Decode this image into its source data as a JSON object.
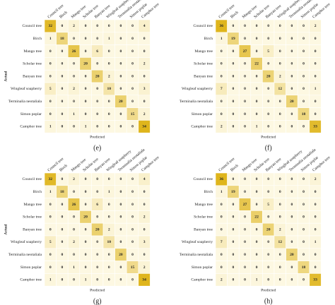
{
  "chart_data": [
    {
      "type": "heatmap",
      "label": "(e)",
      "x_label": "Predicted",
      "y_label": "Actual",
      "categories": [
        "Council tree",
        "Birch",
        "Mango tree",
        "Scholar tree",
        "Banyan tree",
        "Wingleaf soapberry",
        "Terminalia neotaliala",
        "Simon poplar",
        "Camphor tree"
      ],
      "colors": [
        "#fdf8e2",
        "#dfb51c"
      ],
      "values": [
        [
          32,
          0,
          2,
          0,
          0,
          0,
          0,
          0,
          4
        ],
        [
          1,
          18,
          0,
          0,
          0,
          1,
          0,
          0,
          0
        ],
        [
          0,
          0,
          26,
          0,
          6,
          0,
          0,
          0,
          0
        ],
        [
          0,
          0,
          0,
          20,
          0,
          0,
          0,
          0,
          2
        ],
        [
          0,
          0,
          0,
          0,
          20,
          2,
          0,
          0,
          0
        ],
        [
          5,
          0,
          2,
          0,
          0,
          10,
          0,
          0,
          3
        ],
        [
          0,
          0,
          0,
          0,
          0,
          0,
          20,
          0,
          0
        ],
        [
          0,
          0,
          1,
          0,
          0,
          0,
          0,
          15,
          2
        ],
        [
          1,
          0,
          0,
          1,
          0,
          0,
          0,
          0,
          34
        ]
      ]
    },
    {
      "type": "heatmap",
      "label": "(f)",
      "x_label": "Predicted",
      "y_label": "Actual",
      "categories": [
        "Council tree",
        "Birch",
        "Mango tree",
        "Scholar tree",
        "Banyan tree",
        "Wingleaf soapberry",
        "Terminalia neotaliala",
        "Simon poplar",
        "Camphor tree"
      ],
      "colors": [
        "#fdf8e2",
        "#dfb51c"
      ],
      "values": [
        [
          36,
          0,
          0,
          0,
          0,
          0,
          0,
          0,
          2
        ],
        [
          1,
          19,
          0,
          0,
          0,
          0,
          0,
          0,
          0
        ],
        [
          0,
          0,
          27,
          0,
          5,
          0,
          0,
          0,
          0
        ],
        [
          0,
          0,
          0,
          22,
          0,
          0,
          0,
          0,
          0
        ],
        [
          0,
          0,
          0,
          0,
          20,
          2,
          0,
          0,
          0
        ],
        [
          7,
          0,
          0,
          0,
          0,
          12,
          0,
          0,
          1
        ],
        [
          0,
          0,
          0,
          0,
          0,
          0,
          20,
          0,
          0
        ],
        [
          0,
          0,
          0,
          0,
          0,
          0,
          0,
          18,
          0
        ],
        [
          2,
          0,
          0,
          1,
          0,
          0,
          0,
          0,
          33
        ]
      ]
    },
    {
      "type": "heatmap",
      "label": "(g)",
      "x_label": "Predicted",
      "y_label": "Actual",
      "categories": [
        "Council tree",
        "Birch",
        "Mango tree",
        "Scholar tree",
        "Banyan tree",
        "Wingleaf soapberry",
        "Terminalia neotaliala",
        "Simon poplar",
        "Camphor tree"
      ],
      "colors": [
        "#fdf8e2",
        "#dfb51c"
      ],
      "values": [
        [
          32,
          0,
          2,
          0,
          0,
          0,
          0,
          0,
          4
        ],
        [
          1,
          18,
          0,
          0,
          0,
          1,
          0,
          0,
          0
        ],
        [
          0,
          0,
          26,
          0,
          6,
          0,
          0,
          0,
          0
        ],
        [
          0,
          0,
          0,
          20,
          0,
          0,
          0,
          0,
          2
        ],
        [
          0,
          0,
          0,
          0,
          20,
          2,
          0,
          0,
          0
        ],
        [
          5,
          0,
          2,
          0,
          0,
          10,
          0,
          0,
          3
        ],
        [
          0,
          0,
          0,
          0,
          0,
          0,
          20,
          0,
          0
        ],
        [
          0,
          0,
          1,
          0,
          0,
          0,
          0,
          15,
          2
        ],
        [
          1,
          0,
          0,
          1,
          0,
          0,
          0,
          0,
          34
        ]
      ]
    },
    {
      "type": "heatmap",
      "label": "(h)",
      "x_label": "Predicted",
      "y_label": "Actual",
      "categories": [
        "Council tree",
        "Birch",
        "Mango tree",
        "Scholar tree",
        "Banyan tree",
        "Wingleaf soapberry",
        "Terminalia neotaliala",
        "Simon poplar",
        "Camphor tree"
      ],
      "colors": [
        "#fdf8e2",
        "#dfb51c"
      ],
      "values": [
        [
          36,
          0,
          0,
          0,
          0,
          0,
          0,
          0,
          2
        ],
        [
          1,
          19,
          0,
          0,
          0,
          0,
          0,
          0,
          0
        ],
        [
          0,
          0,
          27,
          0,
          5,
          0,
          0,
          0,
          0
        ],
        [
          0,
          0,
          0,
          22,
          0,
          0,
          0,
          0,
          0
        ],
        [
          0,
          0,
          0,
          0,
          20,
          2,
          0,
          0,
          0
        ],
        [
          7,
          0,
          0,
          0,
          0,
          12,
          0,
          0,
          1
        ],
        [
          0,
          0,
          0,
          0,
          0,
          0,
          20,
          0,
          0
        ],
        [
          0,
          0,
          0,
          0,
          0,
          0,
          0,
          18,
          0
        ],
        [
          2,
          0,
          0,
          1,
          0,
          0,
          0,
          0,
          33
        ]
      ]
    }
  ]
}
